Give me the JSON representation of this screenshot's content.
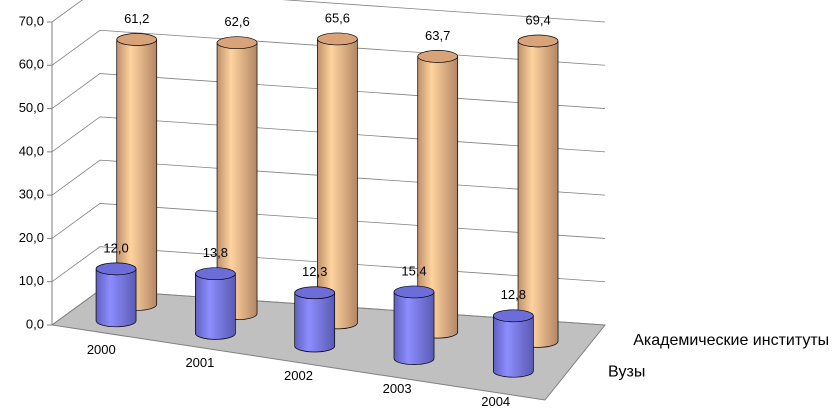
{
  "chart_data": {
    "type": "bar3d-cylinder",
    "categories": [
      "2000",
      "2001",
      "2002",
      "2003",
      "2004"
    ],
    "series": [
      {
        "name": "Вузы",
        "color": "#8080ff",
        "values": [
          12.0,
          13.8,
          12.3,
          15.4,
          12.8
        ],
        "value_labels": [
          "12,0",
          "13,8",
          "12,3",
          "15,4",
          "12,8"
        ]
      },
      {
        "name": "Академические институты",
        "color": "#ffc090",
        "values": [
          61.2,
          62.6,
          65.6,
          63.7,
          69.4
        ],
        "value_labels": [
          "61,2",
          "62,6",
          "65,6",
          "63,7",
          "69,4"
        ]
      }
    ],
    "ylim": [
      0,
      70
    ],
    "yticks": [
      {
        "value": 0,
        "label": "0,0"
      },
      {
        "value": 10,
        "label": "10,0"
      },
      {
        "value": 20,
        "label": "20,0"
      },
      {
        "value": 30,
        "label": "30,0"
      },
      {
        "value": 40,
        "label": "40,0"
      },
      {
        "value": 50,
        "label": "50,0"
      },
      {
        "value": 60,
        "label": "60,0"
      },
      {
        "value": 70,
        "label": "70,0"
      }
    ],
    "grid": true
  }
}
